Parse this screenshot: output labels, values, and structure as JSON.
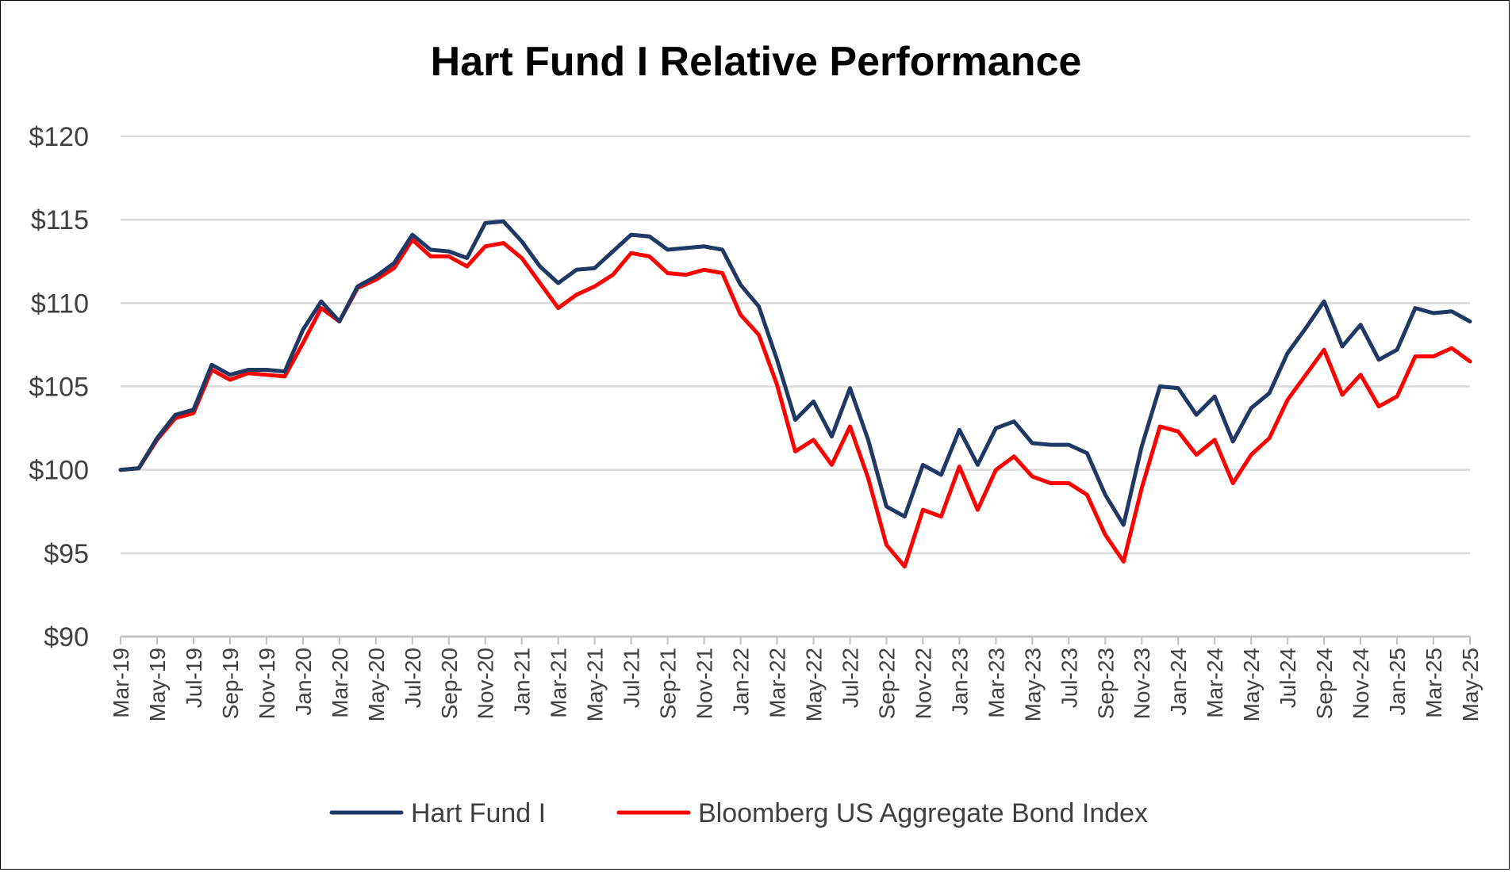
{
  "chart_data": {
    "type": "line",
    "title": "Hart Fund I Relative Performance",
    "xlabel": "",
    "ylabel": "",
    "ylim": [
      90,
      120
    ],
    "ytick_values": [
      90,
      95,
      100,
      105,
      110,
      115,
      120
    ],
    "ytick_labels": [
      "$90",
      "$95",
      "$100",
      "$105",
      "$110",
      "$115",
      "$120"
    ],
    "grid": true,
    "legend_position": "bottom",
    "x": [
      "Mar-19",
      "Apr-19",
      "May-19",
      "Jun-19",
      "Jul-19",
      "Aug-19",
      "Sep-19",
      "Oct-19",
      "Nov-19",
      "Dec-19",
      "Jan-20",
      "Feb-20",
      "Mar-20",
      "Apr-20",
      "May-20",
      "Jun-20",
      "Jul-20",
      "Aug-20",
      "Sep-20",
      "Oct-20",
      "Nov-20",
      "Dec-20",
      "Jan-21",
      "Feb-21",
      "Mar-21",
      "Apr-21",
      "May-21",
      "Jun-21",
      "Jul-21",
      "Aug-21",
      "Sep-21",
      "Oct-21",
      "Nov-21",
      "Dec-21",
      "Jan-22",
      "Feb-22",
      "Mar-22",
      "Apr-22",
      "May-22",
      "Jun-22",
      "Jul-22",
      "Aug-22",
      "Sep-22",
      "Oct-22",
      "Nov-22",
      "Dec-22",
      "Jan-23",
      "Feb-23",
      "Mar-23",
      "Apr-23",
      "May-23",
      "Jun-23",
      "Jul-23",
      "Aug-23",
      "Sep-23",
      "Oct-23",
      "Nov-23",
      "Dec-23",
      "Jan-24",
      "Feb-24",
      "Mar-24",
      "Apr-24",
      "May-24",
      "Jun-24",
      "Jul-24",
      "Aug-24",
      "Sep-24",
      "Oct-24",
      "Nov-24",
      "Dec-24",
      "Jan-25",
      "Feb-25",
      "Mar-25",
      "Apr-25",
      "May-25"
    ],
    "xtick_labels": [
      "Mar-19",
      "May-19",
      "Jul-19",
      "Sep-19",
      "Nov-19",
      "Jan-20",
      "Mar-20",
      "May-20",
      "Jul-20",
      "Sep-20",
      "Nov-20",
      "Jan-21",
      "Mar-21",
      "May-21",
      "Jul-21",
      "Sep-21",
      "Nov-21",
      "Jan-22",
      "Mar-22",
      "May-22",
      "Jul-22",
      "Sep-22",
      "Nov-22",
      "Jan-23",
      "Mar-23",
      "May-23",
      "Jul-23",
      "Sep-23",
      "Nov-23",
      "Jan-24",
      "Mar-24",
      "May-24",
      "Jul-24",
      "Sep-24",
      "Nov-24",
      "Jan-25",
      "Mar-25",
      "May-25"
    ],
    "series": [
      {
        "name": "Hart Fund I",
        "color": "#1f3864",
        "values": [
          100.0,
          100.1,
          101.9,
          103.3,
          103.6,
          106.3,
          105.7,
          106.0,
          106.0,
          105.9,
          108.4,
          110.1,
          108.9,
          111.0,
          111.6,
          112.4,
          114.1,
          113.2,
          113.1,
          112.7,
          114.8,
          114.9,
          113.7,
          112.2,
          111.2,
          112.0,
          112.1,
          113.1,
          114.1,
          114.0,
          113.2,
          113.3,
          113.4,
          113.2,
          111.1,
          109.8,
          106.6,
          103.0,
          104.1,
          102.0,
          104.9,
          101.8,
          97.8,
          97.2,
          100.3,
          99.7,
          102.4,
          100.3,
          102.5,
          102.9,
          101.6,
          101.5,
          101.5,
          101.0,
          98.5,
          96.7,
          101.4,
          105.0,
          104.9,
          103.3,
          104.4,
          101.7,
          103.7,
          104.6,
          107.0,
          108.5,
          110.1,
          107.4,
          108.7,
          106.6,
          107.2,
          109.7,
          109.4,
          109.5,
          108.9
        ]
      },
      {
        "name": "Bloomberg US Aggregate Bond Index",
        "color": "#ff0000",
        "values": [
          100.0,
          100.1,
          101.8,
          103.1,
          103.4,
          106.0,
          105.4,
          105.8,
          105.7,
          105.6,
          107.6,
          109.7,
          108.9,
          110.9,
          111.4,
          112.1,
          113.8,
          112.8,
          112.8,
          112.2,
          113.4,
          113.6,
          112.7,
          111.2,
          109.7,
          110.5,
          111.0,
          111.7,
          113.0,
          112.8,
          111.8,
          111.7,
          112.0,
          111.8,
          109.3,
          108.1,
          105.1,
          101.1,
          101.8,
          100.3,
          102.6,
          99.5,
          95.5,
          94.2,
          97.6,
          97.2,
          100.2,
          97.6,
          100.0,
          100.8,
          99.6,
          99.2,
          99.2,
          98.5,
          96.1,
          94.5,
          98.9,
          102.6,
          102.3,
          100.9,
          101.8,
          99.2,
          100.9,
          101.9,
          104.2,
          105.7,
          107.2,
          104.5,
          105.7,
          103.8,
          104.4,
          106.8,
          106.8,
          107.3,
          106.5
        ]
      }
    ]
  }
}
